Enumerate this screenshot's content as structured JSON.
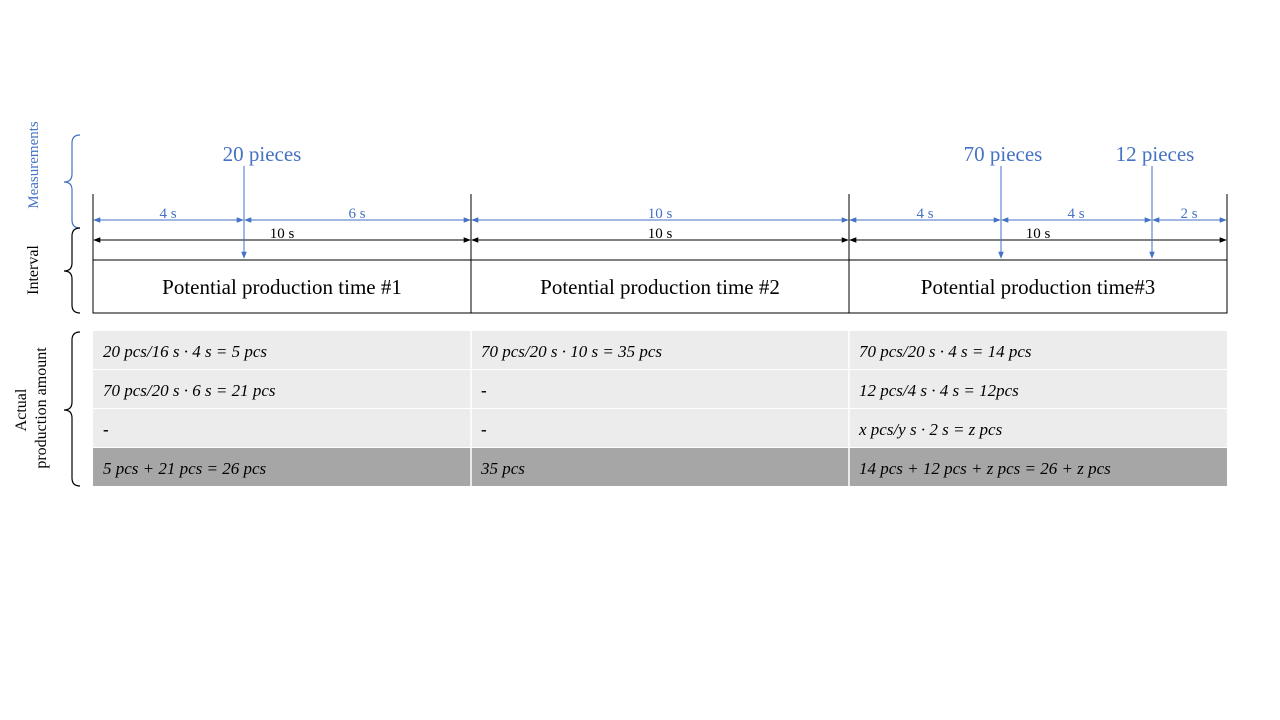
{
  "measurements": {
    "axis_label": "Measurements",
    "events": [
      {
        "label": "20 pieces",
        "pieces": 20,
        "time_s": 4
      },
      {
        "label": "70 pieces",
        "pieces": 70,
        "time_s": 24
      },
      {
        "label": "12 pieces",
        "pieces": 12,
        "time_s": 28
      }
    ],
    "spans": [
      {
        "label": "4 s",
        "start_s": 0,
        "end_s": 4
      },
      {
        "label": "6 s",
        "start_s": 4,
        "end_s": 10
      },
      {
        "label": "10 s",
        "start_s": 10,
        "end_s": 20
      },
      {
        "label": "4 s",
        "start_s": 20,
        "end_s": 24
      },
      {
        "label": "4 s",
        "start_s": 24,
        "end_s": 28
      },
      {
        "label": "2 s",
        "start_s": 28,
        "end_s": 30
      }
    ]
  },
  "interval": {
    "axis_label": "Interval",
    "spans": [
      {
        "label": "10 s",
        "start_s": 0,
        "end_s": 10
      },
      {
        "label": "10 s",
        "start_s": 10,
        "end_s": 20
      },
      {
        "label": "10 s",
        "start_s": 20,
        "end_s": 30
      }
    ],
    "production_times": [
      "Potential production time #1",
      "Potential production time #2",
      "Potential production time#3"
    ]
  },
  "production": {
    "axis_label_lines": [
      "Actual",
      "production amount"
    ],
    "rows": [
      [
        "20 pcs/16 s · 4 s = 5 pcs",
        "70 pcs/20 s · 10 s = 35 pcs",
        "70 pcs/20 s · 4 s = 14 pcs"
      ],
      [
        "70 pcs/20 s · 6 s = 21 pcs",
        "-",
        "12 pcs/4 s · 4 s = 12pcs"
      ],
      [
        "-",
        "-",
        "x pcs/y s · 2 s = z pcs"
      ]
    ],
    "totals": [
      "5 pcs + 21 pcs = 26 pcs",
      "35 pcs",
      "14 pcs + 12 pcs + z pcs = 26 + z pcs"
    ]
  },
  "colors": {
    "measurement_blue": "#4472c4",
    "interval_black": "#000000",
    "row_light": "#ececec",
    "row_total": "#a6a6a6"
  }
}
